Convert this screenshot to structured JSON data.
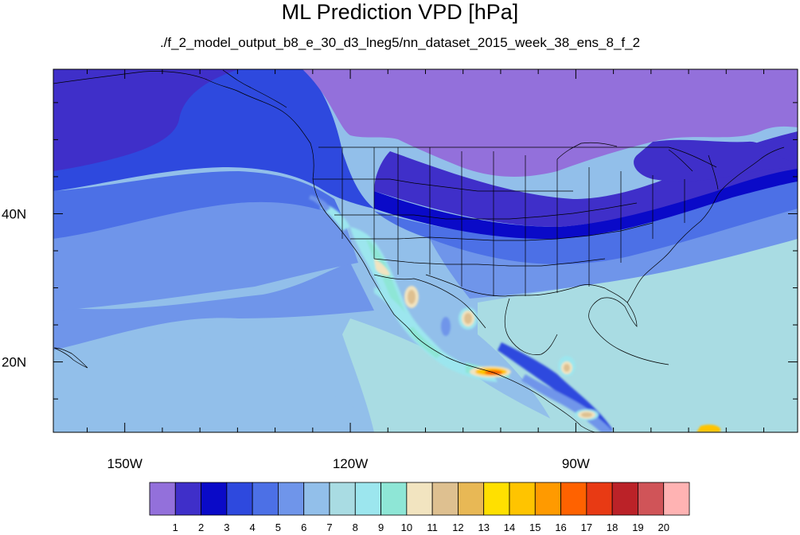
{
  "title": "ML Prediction VPD [hPa]",
  "subtitle": "./f_2_model_output_b8_e_30_d3_lneg5/nn_dataset_2015_week_38_ens_8_f_2",
  "axes": {
    "x_ticks": [
      {
        "label": "150W",
        "lon": -150
      },
      {
        "label": "120W",
        "lon": -120
      },
      {
        "label": "90W",
        "lon": -90
      }
    ],
    "y_ticks": [
      {
        "label": "40N",
        "lat": 40
      },
      {
        "label": "20N",
        "lat": 20
      }
    ],
    "lon_range": [
      -159.5,
      -60.5
    ],
    "lat_range": [
      10.5,
      59.5
    ]
  },
  "colorbar": {
    "labels": [
      "1",
      "2",
      "3",
      "4",
      "5",
      "6",
      "7",
      "8",
      "9",
      "10",
      "11",
      "12",
      "13",
      "14",
      "15",
      "16",
      "17",
      "18",
      "19",
      "20"
    ],
    "colors": [
      "#9370DB",
      "#3F2FC9",
      "#0A0AC8",
      "#2E49DE",
      "#4C70E6",
      "#6F95EA",
      "#92BFEA",
      "#A9DCE3",
      "#9CE6EE",
      "#8EE6D6",
      "#F2E4C0",
      "#DEC090",
      "#E8B855",
      "#FFE000",
      "#FFC400",
      "#FF9A00",
      "#FF6200",
      "#E83A14",
      "#BB2228",
      "#D05458",
      "#FFB3B3"
    ]
  }
}
